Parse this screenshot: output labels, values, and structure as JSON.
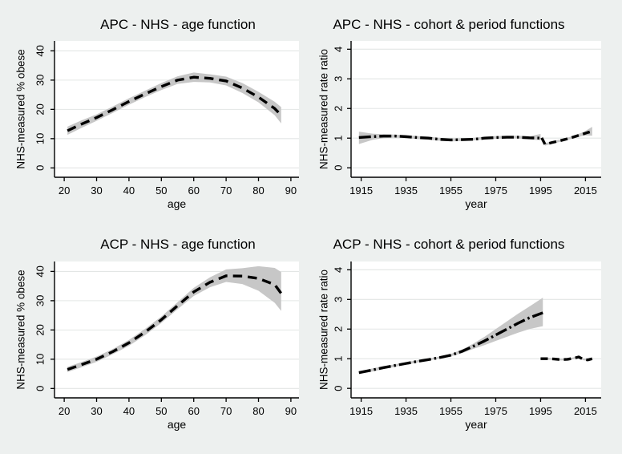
{
  "window": {
    "background": "#edf0ef"
  },
  "palette": {
    "plot_bg": "#ffffff",
    "grid": "#e3e6e5",
    "axis": "#000000",
    "line": "#000000",
    "band": "#c7c7c7",
    "text": "#000000"
  },
  "chart_data": [
    {
      "id": "apc-age-function",
      "type": "line",
      "title": "APC - NHS - age function",
      "xlabel": "age",
      "ylabel": "NHS-measured % obese",
      "xlim": [
        17,
        92.5
      ],
      "ylim": [
        -3.2,
        43.4
      ],
      "xticks": [
        20,
        30,
        40,
        50,
        60,
        70,
        80,
        90
      ],
      "yticks": [
        0,
        10,
        20,
        30,
        40
      ],
      "grid": true,
      "legend": "none",
      "series": [
        {
          "name": "age function (dashed line with shaded confidence band)",
          "dash": "long-dash",
          "x": [
            21,
            25,
            30,
            35,
            40,
            45,
            50,
            55,
            60,
            65,
            70,
            75,
            80,
            85,
            87
          ],
          "y": [
            12.7,
            14.8,
            17.2,
            19.9,
            22.7,
            25.3,
            27.8,
            30.0,
            31.0,
            30.6,
            29.7,
            27.3,
            24.2,
            20.3,
            18.0
          ],
          "band_low": [
            11.3,
            13.5,
            16.1,
            18.8,
            21.6,
            24.2,
            26.6,
            28.7,
            29.4,
            29.2,
            28.2,
            25.6,
            22.4,
            18.0,
            15.2
          ],
          "band_high": [
            14.1,
            16.1,
            18.3,
            21.0,
            23.8,
            26.4,
            29.0,
            31.3,
            32.6,
            32.0,
            31.2,
            29.0,
            26.0,
            22.6,
            20.8
          ]
        }
      ]
    },
    {
      "id": "apc-cohort-period-functions",
      "type": "line",
      "title": "APC - NHS - cohort & period functions",
      "xlabel": "year",
      "ylabel": "NHS-measured rate ratio",
      "xlim": [
        1910.5,
        2022
      ],
      "ylim": [
        -0.32,
        4.28
      ],
      "xticks": [
        1915,
        1935,
        1955,
        1975,
        1995,
        2015
      ],
      "yticks": [
        0,
        1,
        2,
        3,
        4
      ],
      "grid": true,
      "legend": "none",
      "series": [
        {
          "name": "cohort function (dash-dot line with shaded confidence band)",
          "dash": "dash-dot",
          "x": [
            1914,
            1920,
            1925,
            1930,
            1935,
            1940,
            1945,
            1950,
            1955,
            1960,
            1965,
            1970,
            1975,
            1980,
            1985,
            1990,
            1995
          ],
          "y": [
            1.02,
            1.05,
            1.07,
            1.07,
            1.05,
            1.02,
            1.0,
            0.96,
            0.94,
            0.95,
            0.96,
            1.0,
            1.02,
            1.03,
            1.03,
            1.01,
            1.0
          ],
          "band_low": [
            0.8,
            0.94,
            1.0,
            1.02,
            1.0,
            0.97,
            0.95,
            0.91,
            0.89,
            0.9,
            0.92,
            0.96,
            0.98,
            0.99,
            0.99,
            0.96,
            0.93
          ],
          "band_high": [
            1.22,
            1.15,
            1.13,
            1.12,
            1.1,
            1.07,
            1.05,
            1.01,
            0.99,
            1.0,
            1.01,
            1.05,
            1.07,
            1.08,
            1.08,
            1.06,
            1.14
          ]
        },
        {
          "name": "period function (dashed line with shaded confidence band)",
          "dash": "short-dash",
          "x": [
            1995.5,
            1997,
            2000,
            2004,
            2008,
            2011,
            2014,
            2016,
            2018
          ],
          "y": [
            1.01,
            0.79,
            0.85,
            0.92,
            1.0,
            1.07,
            1.14,
            1.19,
            1.23
          ],
          "band_low": [
            0.98,
            0.75,
            0.81,
            0.88,
            0.96,
            1.02,
            1.08,
            1.09,
            1.08
          ],
          "band_high": [
            1.04,
            0.83,
            0.89,
            0.96,
            1.04,
            1.12,
            1.2,
            1.29,
            1.38
          ]
        }
      ]
    },
    {
      "id": "acp-age-function",
      "type": "line",
      "title": "ACP - NHS - age function",
      "xlabel": "age",
      "ylabel": "NHS-measured % obese",
      "xlim": [
        17,
        92.5
      ],
      "ylim": [
        -3.2,
        43.4
      ],
      "xticks": [
        20,
        30,
        40,
        50,
        60,
        70,
        80,
        90
      ],
      "yticks": [
        0,
        10,
        20,
        30,
        40
      ],
      "grid": true,
      "legend": "none",
      "series": [
        {
          "name": "age function (dashed line with shaded confidence band)",
          "dash": "long-dash",
          "x": [
            21,
            25,
            30,
            35,
            40,
            45,
            50,
            55,
            60,
            65,
            70,
            75,
            80,
            85,
            87
          ],
          "y": [
            6.5,
            8.0,
            10.0,
            12.6,
            15.6,
            19.3,
            23.5,
            28.3,
            33.0,
            36.3,
            38.5,
            38.4,
            37.6,
            35.5,
            32.5
          ],
          "band_low": [
            5.6,
            7.1,
            9.1,
            11.7,
            14.6,
            18.2,
            22.4,
            27.1,
            31.6,
            34.6,
            36.4,
            35.7,
            33.4,
            29.3,
            26.5
          ],
          "band_high": [
            7.4,
            8.9,
            10.9,
            13.5,
            16.6,
            20.4,
            24.6,
            29.5,
            34.4,
            38.0,
            40.7,
            41.1,
            41.8,
            41.2,
            39.8
          ]
        }
      ]
    },
    {
      "id": "acp-cohort-period-functions",
      "type": "line",
      "title": "ACP - NHS - cohort & period functions",
      "xlabel": "year",
      "ylabel": "NHS-measured rate ratio",
      "xlim": [
        1910.5,
        2022
      ],
      "ylim": [
        -0.32,
        4.28
      ],
      "xticks": [
        1915,
        1935,
        1955,
        1975,
        1995,
        2015
      ],
      "yticks": [
        0,
        1,
        2,
        3,
        4
      ],
      "grid": true,
      "legend": "none",
      "series": [
        {
          "name": "cohort function (dash-dot line with shaded confidence band)",
          "dash": "dash-dot",
          "x": [
            1914,
            1920,
            1925,
            1930,
            1935,
            1940,
            1945,
            1950,
            1955,
            1960,
            1965,
            1970,
            1975,
            1980,
            1985,
            1990,
            1996
          ],
          "y": [
            0.53,
            0.62,
            0.7,
            0.77,
            0.84,
            0.91,
            0.97,
            1.04,
            1.12,
            1.25,
            1.42,
            1.6,
            1.8,
            2.0,
            2.2,
            2.38,
            2.55
          ],
          "band_low": [
            0.48,
            0.57,
            0.65,
            0.73,
            0.8,
            0.87,
            0.94,
            1.01,
            1.08,
            1.19,
            1.33,
            1.46,
            1.6,
            1.74,
            1.88,
            2.0,
            2.1
          ],
          "band_high": [
            0.58,
            0.67,
            0.75,
            0.81,
            0.88,
            0.95,
            1.0,
            1.07,
            1.16,
            1.31,
            1.51,
            1.74,
            2.0,
            2.26,
            2.52,
            2.76,
            3.06
          ]
        },
        {
          "name": "period function (dashed line with shaded confidence band)",
          "dash": "short-dash",
          "x": [
            1995,
            1998,
            2001,
            2004,
            2007,
            2010,
            2012,
            2014,
            2016,
            2018
          ],
          "y": [
            1.0,
            1.0,
            0.99,
            0.97,
            0.98,
            1.02,
            1.06,
            0.98,
            0.96,
            1.0
          ],
          "band_low": [
            0.97,
            0.97,
            0.96,
            0.94,
            0.95,
            0.99,
            1.03,
            0.95,
            0.93,
            0.97
          ],
          "band_high": [
            1.03,
            1.03,
            1.02,
            1.0,
            1.01,
            1.05,
            1.09,
            1.01,
            0.99,
            1.03
          ]
        }
      ]
    }
  ]
}
